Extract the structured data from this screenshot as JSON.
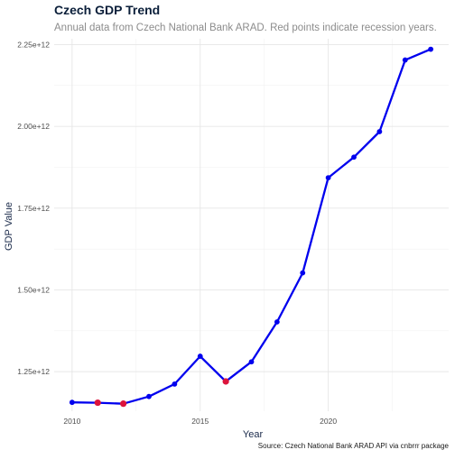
{
  "chart_data": {
    "type": "line",
    "title": "Czech GDP Trend",
    "subtitle": "Annual data from Czech National Bank ARAD. Red points indicate recession years.",
    "xlabel": "Year",
    "ylabel": "GDP Value",
    "caption": "Source: Czech National Bank ARAD API via cnbrrr package",
    "x": [
      2010,
      2011,
      2012,
      2013,
      2014,
      2015,
      2016,
      2017,
      2018,
      2019,
      2020,
      2021,
      2022,
      2023,
      2024
    ],
    "values": [
      1156000000000.0,
      1155000000000.0,
      1152000000000.0,
      1174000000000.0,
      1212000000000.0,
      1297000000000.0,
      1220000000000.0,
      1280000000000.0,
      1402000000000.0,
      1552000000000.0,
      1843000000000.0,
      1906000000000.0,
      1984000000000.0,
      2203000000000.0,
      2236000000000.0
    ],
    "recession": [
      false,
      true,
      true,
      false,
      false,
      false,
      true,
      false,
      false,
      false,
      false,
      false,
      false,
      false,
      false
    ],
    "xlim": [
      2009.3,
      2024.7
    ],
    "ylim": [
      1129000000000.0,
      2268000000000.0
    ],
    "x_ticks": [
      2010,
      2015,
      2020
    ],
    "x_tick_labels": [
      "2010",
      "2015",
      "2020"
    ],
    "y_ticks": [
      1250000000000.0,
      1500000000000.0,
      1750000000000.0,
      2000000000000.0,
      2250000000000.0
    ],
    "y_tick_labels": [
      "1.25e+12",
      "1.50e+12",
      "1.75e+12",
      "2.00e+12",
      "2.25e+12"
    ],
    "x_minor_ticks": [
      2012.5,
      2017.5,
      2022.5
    ],
    "y_minor_ticks": [
      1375000000000.0,
      1625000000000.0,
      1875000000000.0,
      2125000000000.0
    ],
    "grid": true,
    "colors": {
      "line": "#0000ee",
      "point": "#0000ee",
      "recession_point": "#dc143c",
      "title": "#0b1f3a",
      "subtitle": "#8c8c8c"
    }
  }
}
